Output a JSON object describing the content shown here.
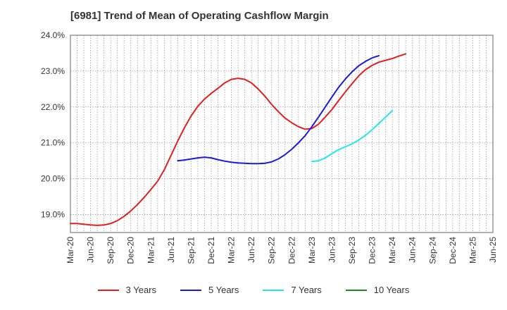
{
  "chart_data": {
    "type": "line",
    "title": "[6981]  Trend of Mean of Operating Cashflow Margin",
    "xlabel": "",
    "ylabel": "",
    "ylim": [
      18.5,
      24.0
    ],
    "y_ticks": [
      "19.0%",
      "20.0%",
      "21.0%",
      "22.0%",
      "23.0%",
      "24.0%"
    ],
    "y_tick_values": [
      19.0,
      20.0,
      21.0,
      22.0,
      23.0,
      24.0
    ],
    "x_ticks": [
      "Mar-20",
      "Jun-20",
      "Sep-20",
      "Dec-20",
      "Mar-21",
      "Jun-21",
      "Sep-21",
      "Dec-21",
      "Mar-22",
      "Jun-22",
      "Sep-22",
      "Dec-22",
      "Mar-23",
      "Jun-23",
      "Sep-23",
      "Dec-23",
      "Mar-24",
      "Jun-24",
      "Sep-24",
      "Dec-24",
      "Mar-25",
      "Jun-25"
    ],
    "grid": true,
    "legend_position": "bottom",
    "series": [
      {
        "name": "3 Years",
        "color": "#e02020",
        "values": [
          18.75,
          18.75,
          18.73,
          18.71,
          18.7,
          18.71,
          18.75,
          18.83,
          18.95,
          19.1,
          19.28,
          19.48,
          19.7,
          19.93,
          20.25,
          20.65,
          21.05,
          21.42,
          21.75,
          22.02,
          22.22,
          22.38,
          22.52,
          22.67,
          22.77,
          22.8,
          22.77,
          22.67,
          22.5,
          22.3,
          22.07,
          21.87,
          21.69,
          21.56,
          21.45,
          21.38,
          21.4,
          21.52,
          21.72,
          21.93,
          22.18,
          22.42,
          22.65,
          22.87,
          23.04,
          23.16,
          23.25,
          23.3,
          23.35,
          23.42,
          23.48
        ]
      },
      {
        "name": "5 Years",
        "color": "#1a1adb",
        "start_index": 16,
        "values": [
          20.5,
          20.52,
          20.55,
          20.58,
          20.6,
          20.58,
          20.53,
          20.49,
          20.46,
          20.44,
          20.43,
          20.42,
          20.42,
          20.43,
          20.47,
          20.55,
          20.67,
          20.82,
          21.0,
          21.2,
          21.45,
          21.72,
          22.0,
          22.28,
          22.55,
          22.78,
          22.98,
          23.15,
          23.27,
          23.37,
          23.43
        ]
      },
      {
        "name": "7 Years",
        "color": "#22e6f0",
        "start_index": 36,
        "values": [
          20.48,
          20.5,
          20.58,
          20.7,
          20.81,
          20.89,
          20.97,
          21.08,
          21.21,
          21.37,
          21.54,
          21.72,
          21.9
        ]
      },
      {
        "name": "10 Years",
        "color": "#1e8a1e",
        "values": []
      }
    ]
  }
}
